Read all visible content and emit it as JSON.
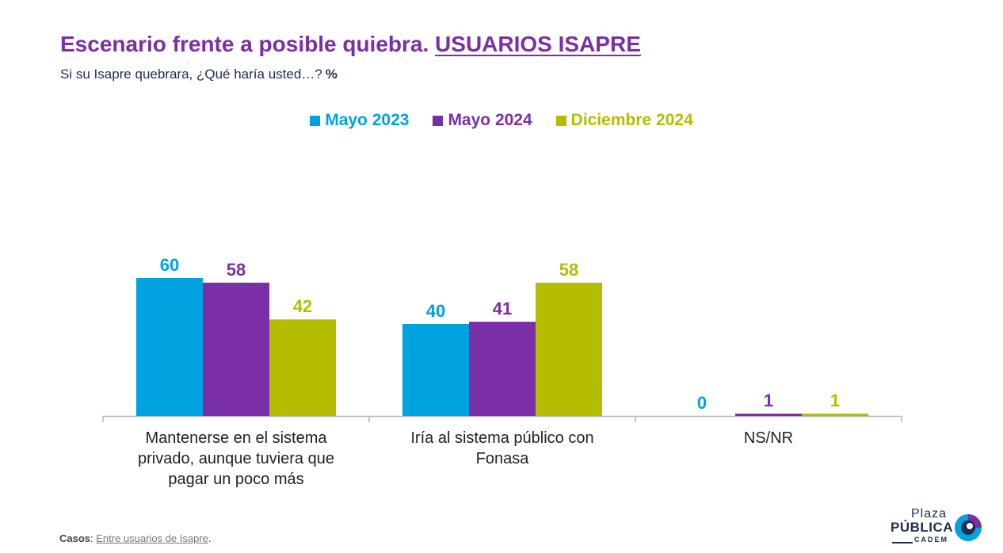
{
  "header": {
    "title_main": "Escenario frente a posible quiebra.",
    "title_highlight": "USUARIOS ISAPRE",
    "subtitle": "Si su Isapre quebrara, ¿Qué haría usted…?",
    "subtitle_unit": "%"
  },
  "colors": {
    "title": "#7b2fa6",
    "subtitle": "#1f2d4f",
    "axis": "#b5b5b5"
  },
  "chart_data": {
    "type": "bar",
    "categories": [
      "Mantenerse en el sistema privado, aunque tuviera que pagar un poco más",
      "Iría al sistema público con Fonasa",
      "NS/NR"
    ],
    "category_lines": [
      [
        "Mantenerse en el sistema",
        "privado, aunque tuviera que",
        "pagar un poco más"
      ],
      [
        "Iría al sistema público con",
        "Fonasa"
      ],
      [
        "NS/NR"
      ]
    ],
    "series": [
      {
        "name": "Mayo 2023",
        "color": "#00a3e0",
        "values": [
          60,
          40,
          0
        ]
      },
      {
        "name": "Mayo 2024",
        "color": "#7b2fa6",
        "values": [
          58,
          41,
          1
        ]
      },
      {
        "name": "Diciembre 2024",
        "color": "#b5bd00",
        "values": [
          42,
          58,
          1
        ]
      }
    ],
    "ylim": [
      0,
      60
    ],
    "legend_position": "top-center",
    "data_labels": true,
    "grid": false
  },
  "footer": {
    "casos_label": "Casos",
    "casos_value": "Entre usuarios de Isapre",
    "casos_end": "."
  },
  "logo": {
    "line1": "Plaza",
    "line2": "PÚBLICA",
    "line3": "CADEM",
    "icon": "cadem-swirl-icon"
  }
}
